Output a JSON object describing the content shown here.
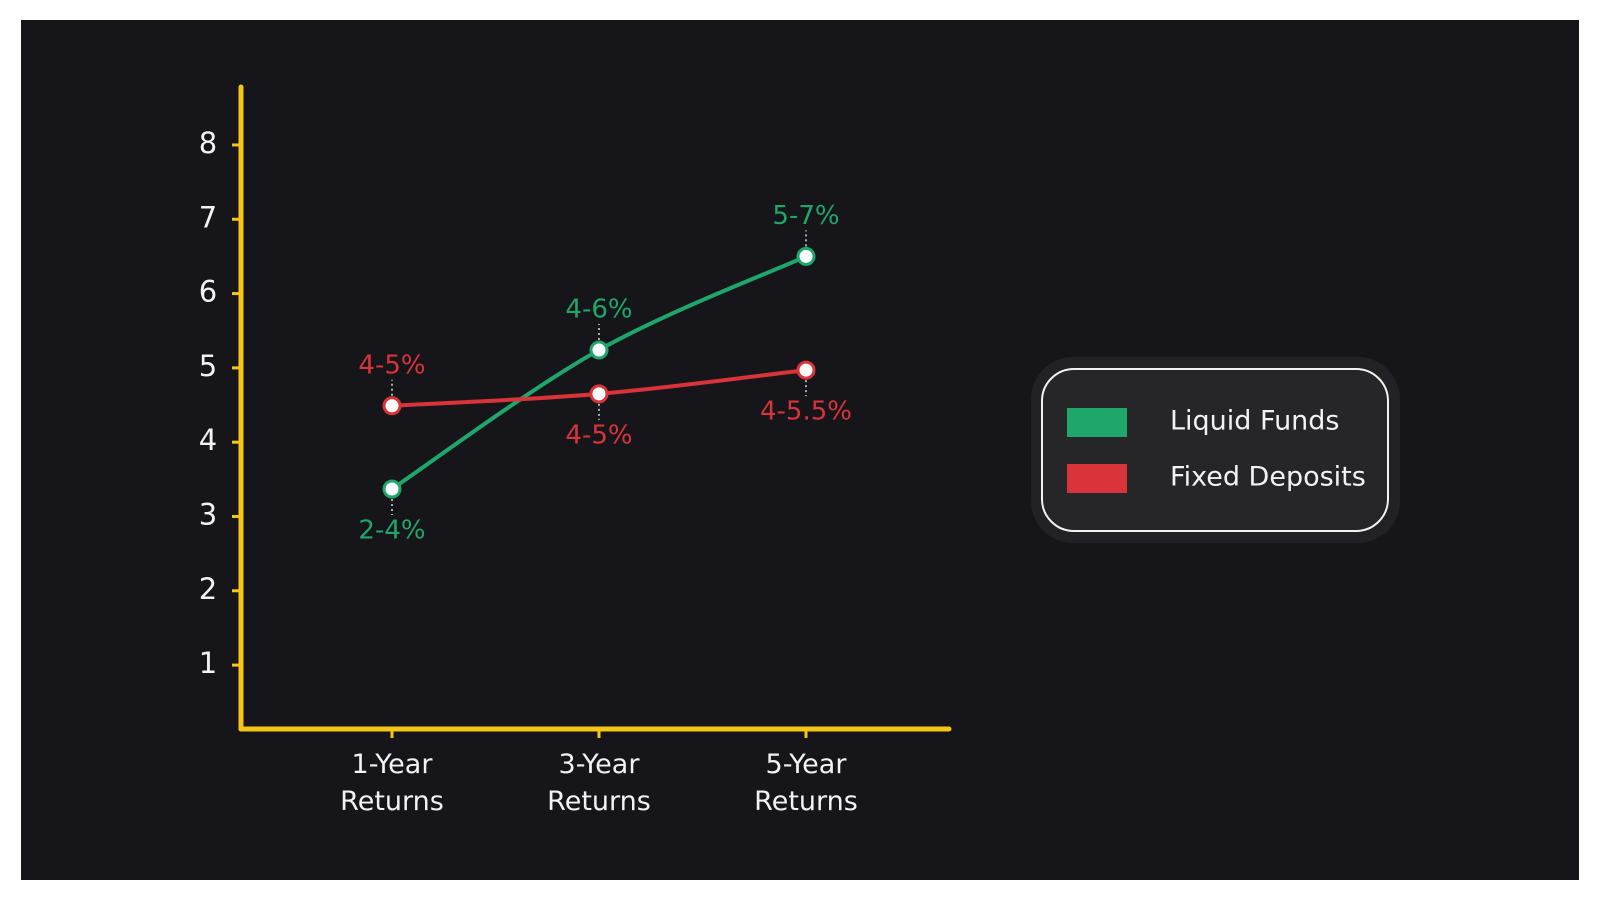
{
  "chart_data": {
    "type": "line",
    "categories": [
      "1-Year Returns",
      "3-Year Returns",
      "5-Year Returns"
    ],
    "series": [
      {
        "name": "Liquid Funds",
        "color": "#1fa66a",
        "values": [
          3.37,
          5.24,
          6.5
        ],
        "value_labels": [
          "2-4%",
          "4-6%",
          "5-7%"
        ]
      },
      {
        "name": "Fixed Deposits",
        "color": "#d8343a",
        "values": [
          4.49,
          4.65,
          4.97
        ],
        "value_labels": [
          "4-5%",
          "4-5%",
          "4-5.5%"
        ]
      }
    ],
    "ylim": [
      0.14,
      8.78
    ],
    "yticks": [
      1,
      2,
      3,
      4,
      5,
      6,
      7,
      8
    ],
    "axis_color": "#f5c518",
    "legend": "right",
    "grid": false
  }
}
